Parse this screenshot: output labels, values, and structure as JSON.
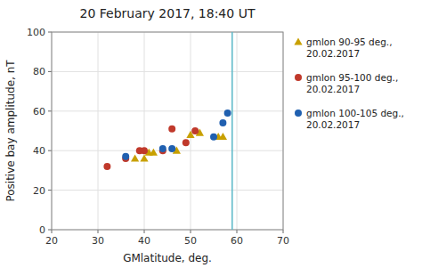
{
  "chart_data": {
    "type": "scatter",
    "title": "20 February 2017, 18:40 UT",
    "x_label": "GMlatitude, deg.",
    "y_label": "Positive bay amplitude, nT",
    "xlim": [
      20,
      70
    ],
    "ylim": [
      0,
      100
    ],
    "xticks": [
      20,
      30,
      40,
      50,
      60,
      70
    ],
    "yticks": [
      0,
      20,
      40,
      60,
      80,
      100
    ],
    "grid": true,
    "legend": "right",
    "vlines": [
      {
        "x": 59,
        "color": "#5ab8c8"
      }
    ],
    "series": [
      {
        "name": "gmlon 90-95 deg.,\n20.02.2017",
        "color": "#c8a000",
        "marker": "triangle",
        "x": [
          38,
          40,
          41,
          42,
          47,
          50,
          52,
          56,
          57
        ],
        "values": [
          36,
          36,
          39,
          39,
          40,
          48,
          49,
          47,
          47
        ]
      },
      {
        "name": "gmlon 95-100 deg.,\n20.02.2017",
        "color": "#c0392b",
        "marker": "circle",
        "x": [
          32,
          36,
          39,
          40,
          44,
          46,
          49,
          51
        ],
        "values": [
          32,
          36,
          40,
          40,
          40,
          51,
          44,
          50
        ]
      },
      {
        "name": "gmlon 100-105 deg.,\n20.02.2017",
        "color": "#2060b0",
        "marker": "circle",
        "x": [
          36,
          44,
          46,
          55,
          57,
          58
        ],
        "values": [
          37,
          41,
          41,
          47,
          54,
          59
        ]
      }
    ]
  }
}
